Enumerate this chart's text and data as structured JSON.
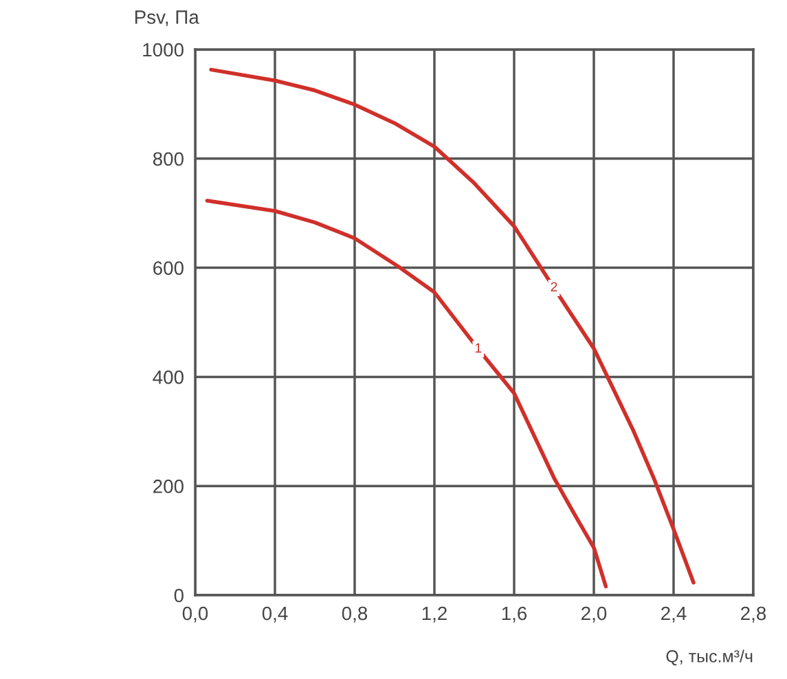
{
  "chart_data": {
    "type": "line",
    "xlabel": "Q, тыс.м³/ч",
    "ylabel": "Psv, Па",
    "series": [
      {
        "color": "#d0302a",
        "x": [
          0.06,
          0.4,
          0.6,
          0.8,
          1.02,
          1.2,
          1.42,
          1.6,
          1.8,
          1.9,
          2.0,
          2.06
        ],
        "values": [
          723,
          704,
          683,
          654,
          602,
          555,
          451,
          370,
          215,
          150,
          87,
          16
        ]
      },
      {
        "color": "#d0302a",
        "x": [
          0.08,
          0.4,
          0.6,
          0.8,
          1.0,
          1.2,
          1.4,
          1.6,
          1.8,
          2.0,
          2.2,
          2.3,
          2.4,
          2.5
        ],
        "values": [
          963,
          943,
          925,
          899,
          865,
          822,
          755,
          676,
          563,
          452,
          300,
          215,
          121,
          23
        ]
      }
    ],
    "annotations": [
      {
        "text": "1",
        "x": 1.42,
        "y": 451
      },
      {
        "text": "2",
        "x": 1.8,
        "y": 563
      }
    ],
    "xlim": [
      0,
      2.8
    ],
    "ylim": [
      0,
      1000
    ],
    "xticks": [
      {
        "value": 0,
        "label": "0,0"
      },
      {
        "value": 0.4,
        "label": "0,4"
      },
      {
        "value": 0.8,
        "label": "0,8"
      },
      {
        "value": 1.2,
        "label": "1,2"
      },
      {
        "value": 1.6,
        "label": "1,6"
      },
      {
        "value": 2.0,
        "label": "2,0"
      },
      {
        "value": 2.4,
        "label": "2,4"
      },
      {
        "value": 2.8,
        "label": "2,8"
      }
    ],
    "yticks": [
      0,
      200,
      400,
      600,
      800,
      1000
    ],
    "grid": true,
    "marker": "none",
    "line_style": "solid"
  }
}
